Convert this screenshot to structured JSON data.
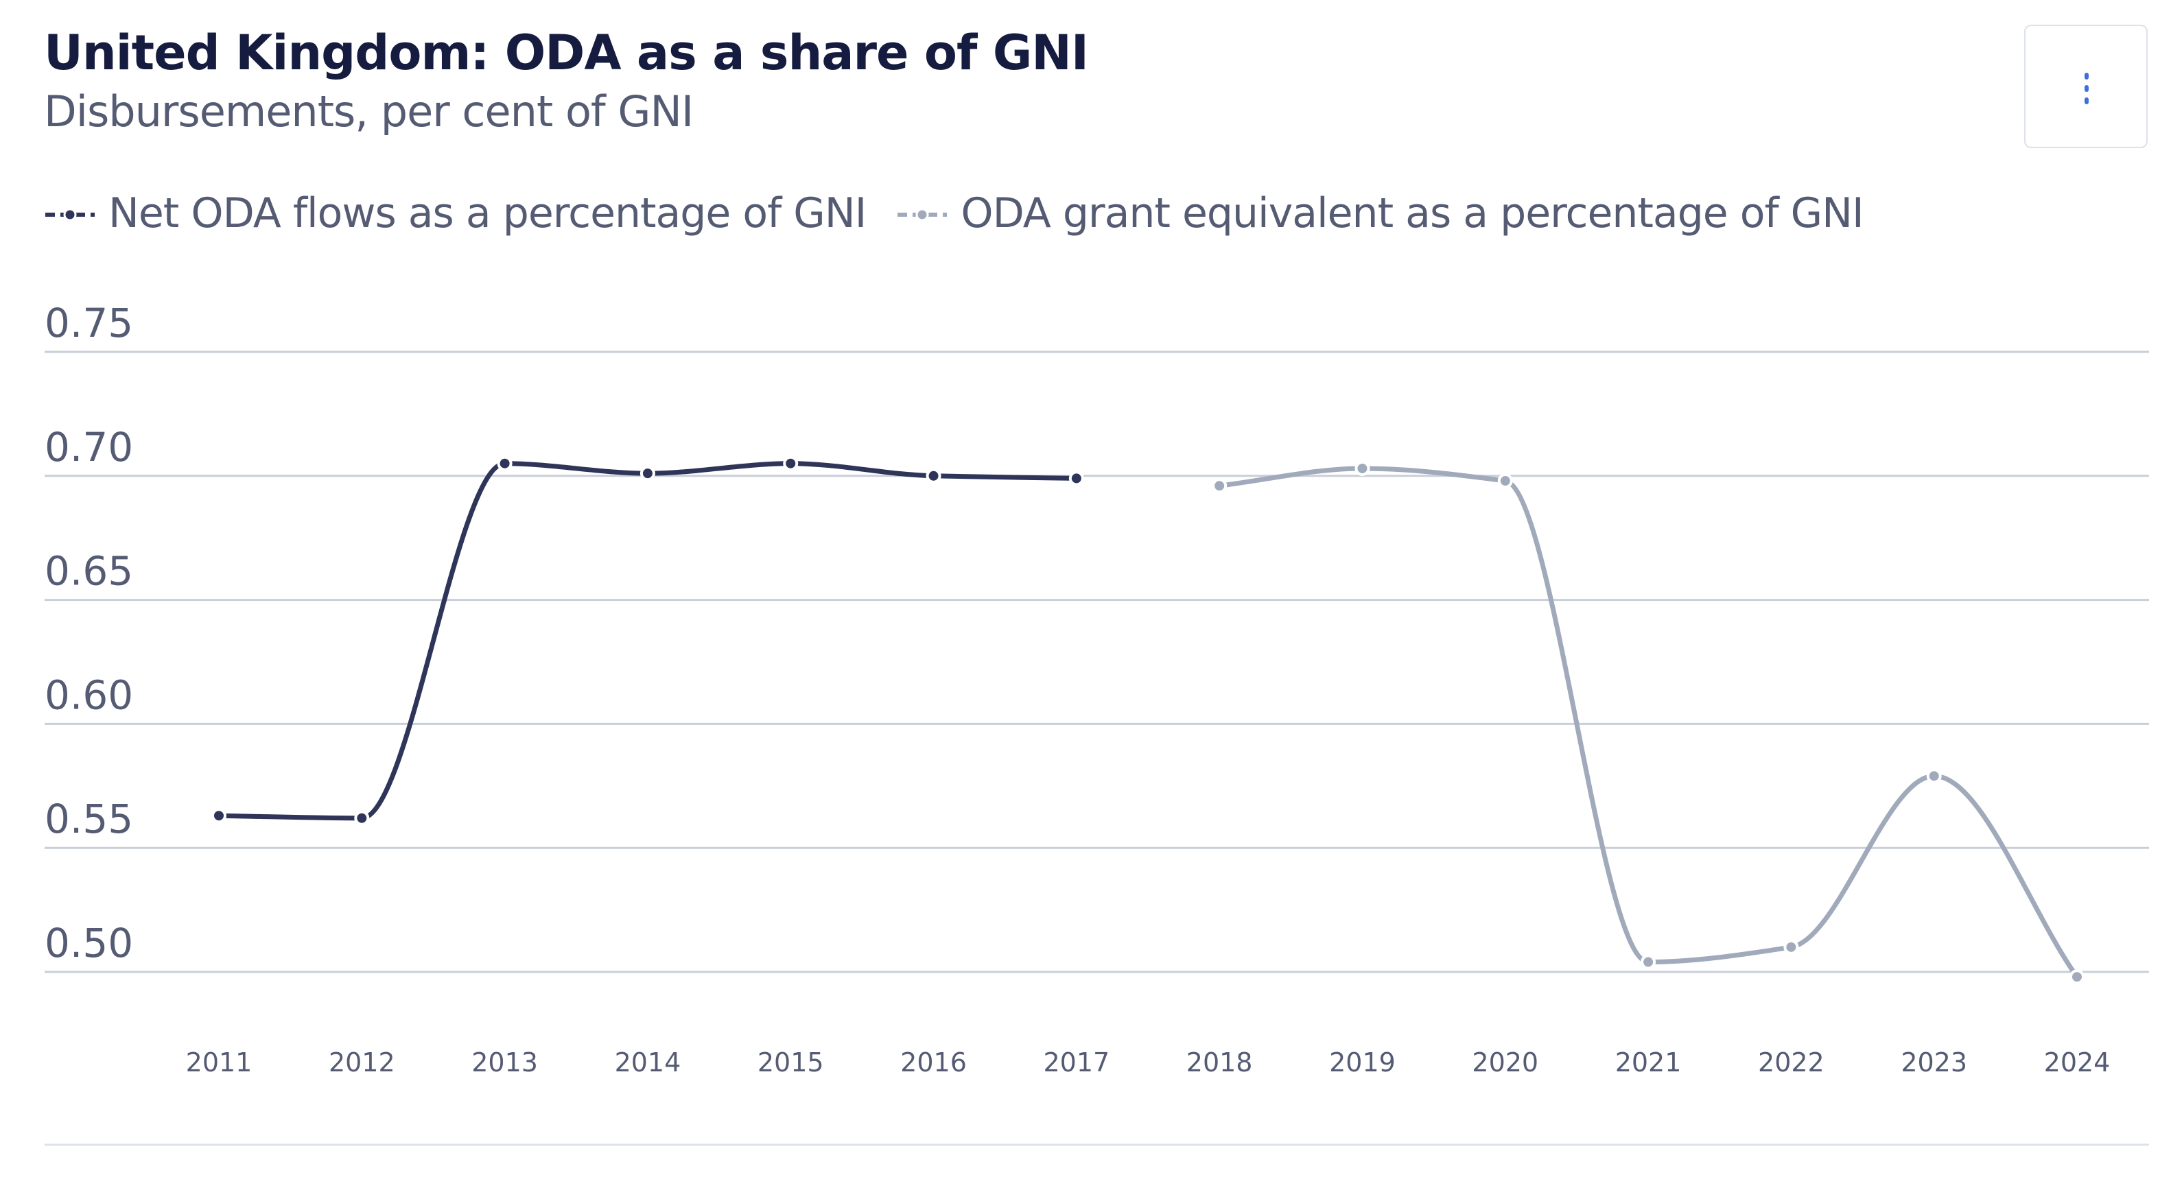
{
  "header": {
    "title": "United Kingdom: ODA as a share of GNI",
    "subtitle": "Disbursements, per cent of GNI",
    "menu_icon": "vertical-ellipsis-icon"
  },
  "chart_data": {
    "type": "line",
    "title": "United Kingdom: ODA as a share of GNI",
    "subtitle": "Disbursements, per cent of GNI",
    "xlabel": "",
    "ylabel": "",
    "legend_position": "top-left",
    "grid": true,
    "ylim": [
      0.5,
      0.75
    ],
    "y_ticks": [
      "0.50",
      "0.55",
      "0.60",
      "0.65",
      "0.70",
      "0.75"
    ],
    "x": [
      "2011",
      "2012",
      "2013",
      "2014",
      "2015",
      "2016",
      "2017",
      "2018",
      "2019",
      "2020",
      "2021",
      "2022",
      "2023",
      "2024"
    ],
    "series": [
      {
        "name": "Net ODA flows as a percentage of GNI",
        "color": "#2e3558",
        "values": [
          0.563,
          0.562,
          0.705,
          0.701,
          0.705,
          0.7,
          0.699,
          null,
          null,
          null,
          null,
          null,
          null,
          null
        ]
      },
      {
        "name": "ODA grant equivalent as a percentage of GNI",
        "color": "#a0aabb",
        "values": [
          null,
          null,
          null,
          null,
          null,
          null,
          null,
          0.696,
          0.703,
          0.698,
          0.504,
          0.51,
          0.579,
          0.498
        ]
      }
    ]
  }
}
